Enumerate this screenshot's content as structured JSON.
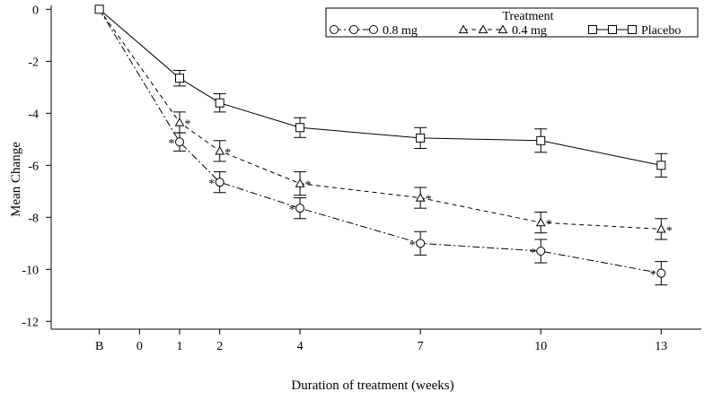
{
  "chart_data": {
    "type": "line",
    "xlabel": "Duration of treatment (weeks)",
    "ylabel": "Mean Change",
    "x_tick_labels": [
      "B",
      "0",
      "1",
      "2",
      "4",
      "7",
      "10",
      "13"
    ],
    "x_tick_positions": [
      -1,
      0,
      1,
      2,
      4,
      7,
      10,
      13
    ],
    "y_ticks": [
      0,
      -2,
      -4,
      -6,
      -8,
      -10,
      -12
    ],
    "xlim": [
      -2.2,
      14
    ],
    "ylim": [
      -12.3,
      0.15
    ],
    "grid": false,
    "legend": {
      "title": "Treatment",
      "placement": "top-right",
      "entries": [
        "0.8 mg",
        "0.4 mg",
        "Placebo"
      ]
    },
    "annotation_marker": "*",
    "series": [
      {
        "name": "0.8 mg",
        "marker": "circle",
        "line": "dash-dot",
        "x": [
          -1,
          1,
          2,
          4,
          7,
          10,
          13
        ],
        "values": [
          0,
          -5.1,
          -6.65,
          -7.65,
          -9.0,
          -9.3,
          -10.15
        ],
        "err": [
          0,
          0.35,
          0.4,
          0.4,
          0.45,
          0.45,
          0.45
        ],
        "starred": [
          false,
          true,
          true,
          true,
          true,
          true,
          true
        ]
      },
      {
        "name": "0.4 mg",
        "marker": "triangle",
        "line": "dashed",
        "x": [
          -1,
          1,
          2,
          4,
          7,
          10,
          13
        ],
        "values": [
          0,
          -4.35,
          -5.45,
          -6.7,
          -7.25,
          -8.2,
          -8.45
        ],
        "err": [
          0,
          0.4,
          0.4,
          0.45,
          0.4,
          0.4,
          0.4
        ],
        "starred": [
          false,
          true,
          true,
          true,
          true,
          true,
          true
        ]
      },
      {
        "name": "Placebo",
        "marker": "square",
        "line": "solid",
        "x": [
          -1,
          1,
          2,
          4,
          7,
          10,
          13
        ],
        "values": [
          0,
          -2.65,
          -3.6,
          -4.55,
          -4.95,
          -5.05,
          -6.0
        ],
        "err": [
          0,
          0.3,
          0.35,
          0.38,
          0.4,
          0.45,
          0.45
        ],
        "starred": [
          false,
          false,
          false,
          false,
          false,
          false,
          false
        ]
      }
    ]
  }
}
